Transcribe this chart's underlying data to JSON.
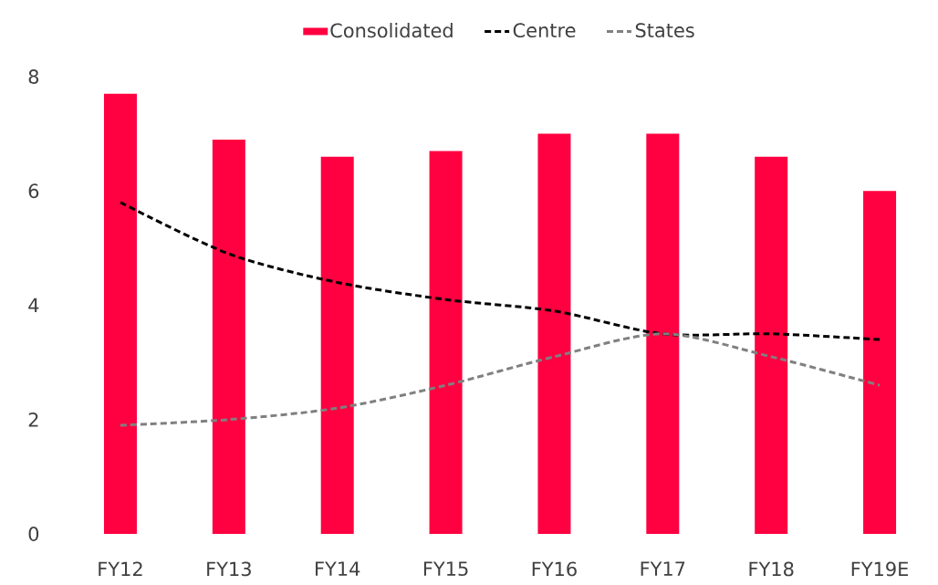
{
  "chart_data": {
    "type": "bar",
    "categories": [
      "FY12",
      "FY13",
      "FY14",
      "FY15",
      "FY16",
      "FY17",
      "FY18",
      "FY19E"
    ],
    "series": [
      {
        "name": "Consolidated",
        "color": "#ff0040",
        "values": [
          7.7,
          6.9,
          6.6,
          6.7,
          7.0,
          7.0,
          6.6,
          6.0
        ]
      },
      {
        "name": "Centre",
        "type": "line",
        "color": "#000000",
        "line_style": "dashed",
        "values": [
          5.8,
          4.9,
          4.4,
          4.1,
          3.9,
          3.5,
          3.5,
          3.4
        ]
      },
      {
        "name": "States",
        "type": "line",
        "color": "#808080",
        "line_style": "dashed",
        "values": [
          1.9,
          2.0,
          2.2,
          2.6,
          3.1,
          3.5,
          3.1,
          2.6
        ]
      }
    ],
    "ylim": [
      0,
      8
    ],
    "yticks": [
      0,
      2,
      4,
      6,
      8
    ],
    "grid": false,
    "legend": "top",
    "marker": "none"
  }
}
